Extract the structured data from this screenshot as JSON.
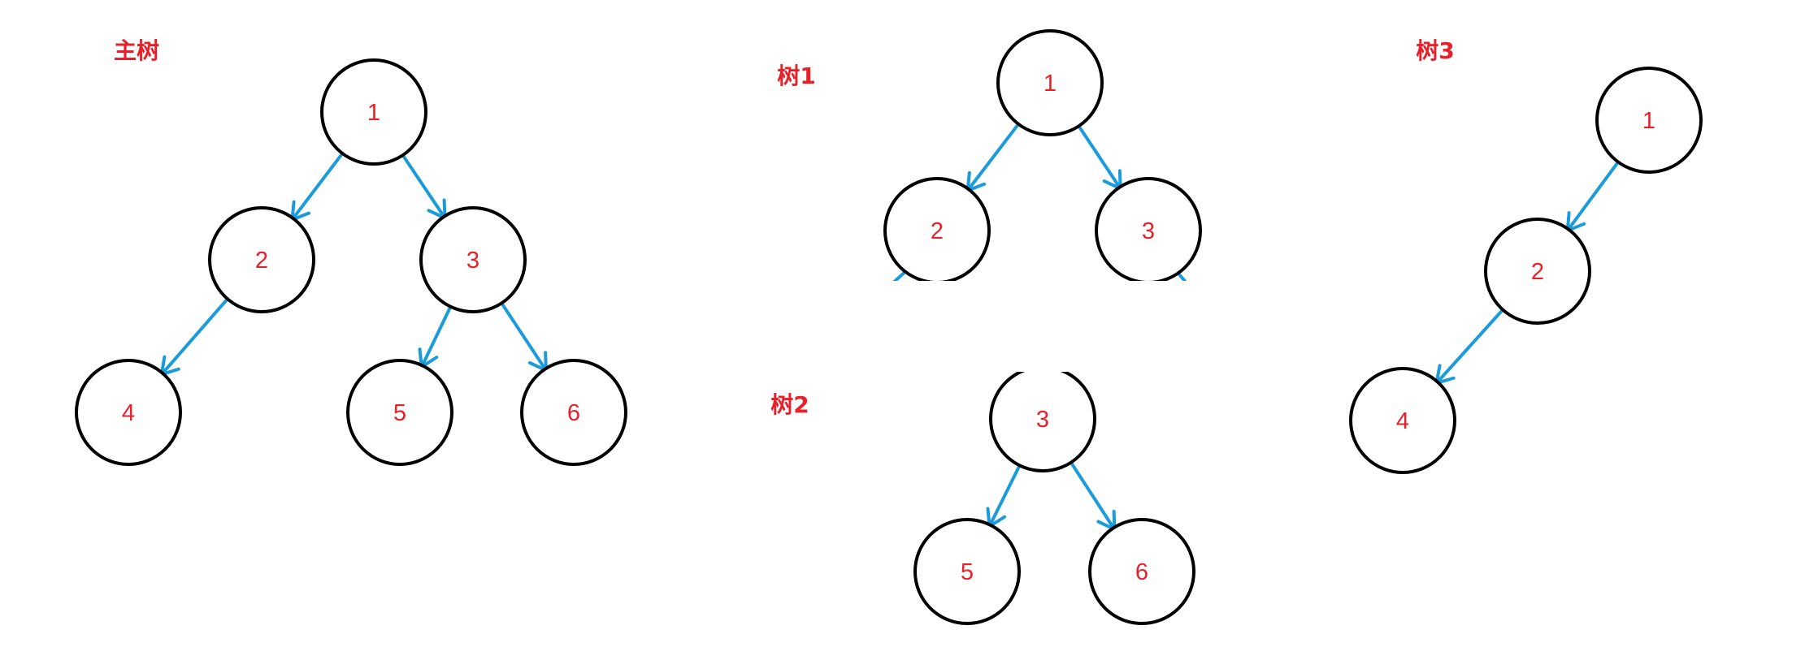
{
  "colors": {
    "node_stroke": "#000000",
    "node_label": "#e8202a",
    "edge": "#1a9bdc",
    "title": "#e8202a"
  },
  "trees": [
    {
      "id": "main-tree",
      "title": "主树",
      "nodes": [
        {
          "id": "n1",
          "label": "1"
        },
        {
          "id": "n2",
          "label": "2"
        },
        {
          "id": "n3",
          "label": "3"
        },
        {
          "id": "n4",
          "label": "4"
        },
        {
          "id": "n5",
          "label": "5"
        },
        {
          "id": "n6",
          "label": "6"
        }
      ],
      "edges": [
        {
          "from": "n1",
          "to": "n2"
        },
        {
          "from": "n1",
          "to": "n3"
        },
        {
          "from": "n2",
          "to": "n4"
        },
        {
          "from": "n3",
          "to": "n5"
        },
        {
          "from": "n3",
          "to": "n6"
        }
      ]
    },
    {
      "id": "tree-1",
      "title": "树1",
      "nodes": [
        {
          "id": "n1",
          "label": "1"
        },
        {
          "id": "n2",
          "label": "2"
        },
        {
          "id": "n3",
          "label": "3"
        }
      ],
      "edges": [
        {
          "from": "n1",
          "to": "n2"
        },
        {
          "from": "n1",
          "to": "n3"
        }
      ]
    },
    {
      "id": "tree-2",
      "title": "树2",
      "nodes": [
        {
          "id": "n3",
          "label": "3"
        },
        {
          "id": "n5",
          "label": "5"
        },
        {
          "id": "n6",
          "label": "6"
        }
      ],
      "edges": [
        {
          "from": "n3",
          "to": "n5"
        },
        {
          "from": "n3",
          "to": "n6"
        }
      ]
    },
    {
      "id": "tree-3",
      "title": "树3",
      "nodes": [
        {
          "id": "n1",
          "label": "1"
        },
        {
          "id": "n2",
          "label": "2"
        },
        {
          "id": "n4",
          "label": "4"
        }
      ],
      "edges": [
        {
          "from": "n1",
          "to": "n2"
        },
        {
          "from": "n2",
          "to": "n4"
        }
      ]
    }
  ]
}
